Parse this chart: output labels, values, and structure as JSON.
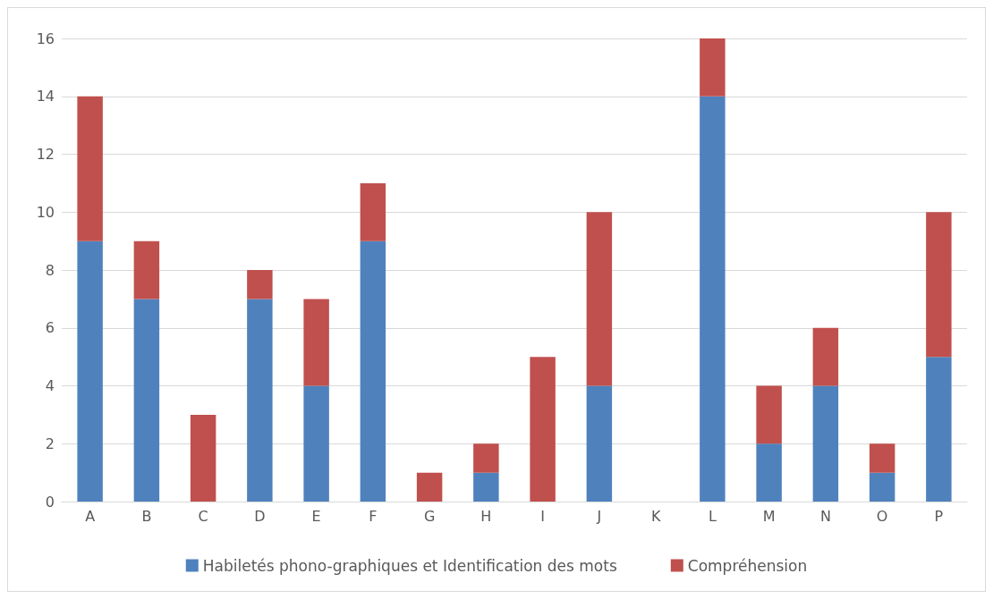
{
  "chart_data": {
    "type": "bar",
    "stacked": true,
    "categories": [
      "A",
      "B",
      "C",
      "D",
      "E",
      "F",
      "G",
      "H",
      "I",
      "J",
      "K",
      "L",
      "M",
      "N",
      "O",
      "P"
    ],
    "series": [
      {
        "name": "Habiletés phono-graphiques et Identification des mots",
        "color": "#4f81bd",
        "values": [
          9,
          7,
          0,
          7,
          4,
          9,
          0,
          1,
          0,
          4,
          0,
          14,
          2,
          4,
          1,
          5
        ]
      },
      {
        "name": "Compréhension",
        "color": "#c0504d",
        "values": [
          5,
          2,
          3,
          1,
          3,
          2,
          1,
          1,
          5,
          6,
          0,
          2,
          2,
          2,
          1,
          5
        ]
      }
    ],
    "ylim": [
      0,
      16
    ],
    "yticks": [
      0,
      2,
      4,
      6,
      8,
      10,
      12,
      14,
      16
    ],
    "grid": "y",
    "legend": "bottom"
  }
}
